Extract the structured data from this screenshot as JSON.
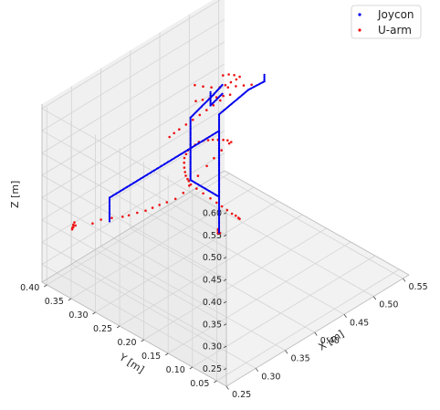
{
  "chart_data": {
    "type": "scatter",
    "projection": "3d",
    "grid": true,
    "legend_placement": "top-right",
    "xlabel": "X [m]",
    "ylabel": "Y [m]",
    "zlabel": "Z [m]",
    "xlim": [
      0.25,
      0.56
    ],
    "ylim": [
      0.03,
      0.41
    ],
    "zlim": [
      0.21,
      0.61
    ],
    "xticks": [
      "0.25",
      "0.30",
      "0.35",
      "0.40",
      "0.45",
      "0.50",
      "0.55"
    ],
    "yticks": [
      "0.05",
      "0.10",
      "0.15",
      "0.20",
      "0.25",
      "0.30",
      "0.35",
      "0.40"
    ],
    "zticks": [
      "0.25",
      "0.30",
      "0.35",
      "0.40",
      "0.45",
      "0.50",
      "0.55",
      "0.60"
    ],
    "colors": {
      "Joycon": "#0000ee",
      "U-arm": "#ee1111"
    },
    "series": [
      {
        "name": "Joycon",
        "marker": "dot",
        "segments": [
          [
            [
              0.274,
              0.3,
              0.395
            ],
            [
              0.274,
              0.3,
              0.43
            ],
            [
              0.274,
              0.3,
              0.448
            ]
          ],
          [
            [
              0.274,
              0.3,
              0.448
            ],
            [
              0.46,
              0.3,
              0.448
            ]
          ],
          [
            [
              0.46,
              0.3,
              0.448
            ],
            [
              0.46,
              0.3,
              0.3
            ],
            [
              0.46,
              0.3,
              0.22
            ]
          ],
          [
            [
              0.46,
              0.3,
              0.3
            ],
            [
              0.46,
              0.3,
              0.415
            ],
            [
              0.46,
              0.3,
              0.485
            ]
          ],
          [
            [
              0.46,
              0.3,
              0.485
            ],
            [
              0.51,
              0.3,
              0.5
            ],
            [
              0.537,
              0.3,
              0.497
            ],
            [
              0.537,
              0.3,
              0.512
            ]
          ],
          [
            [
              0.46,
              0.3,
              0.3
            ],
            [
              0.461,
              0.36,
              0.3
            ],
            [
              0.461,
              0.36,
              0.38
            ],
            [
              0.461,
              0.36,
              0.44
            ]
          ],
          [
            [
              0.461,
              0.36,
              0.44
            ],
            [
              0.48,
              0.36,
              0.45
            ],
            [
              0.5,
              0.36,
              0.46
            ],
            [
              0.515,
              0.36,
              0.47
            ]
          ],
          [
            [
              0.495,
              0.36,
              0.47
            ],
            [
              0.495,
              0.36,
              0.44
            ],
            [
              0.515,
              0.36,
              0.45
            ]
          ]
        ]
      },
      {
        "name": "U-arm",
        "marker": "dot",
        "points": [
          [
            0.262,
            0.36,
            0.355
          ],
          [
            0.262,
            0.36,
            0.36
          ],
          [
            0.261,
            0.361,
            0.35
          ],
          [
            0.263,
            0.359,
            0.365
          ],
          [
            0.262,
            0.362,
            0.352
          ],
          [
            0.264,
            0.358,
            0.358
          ],
          [
            0.27,
            0.33,
            0.375
          ],
          [
            0.276,
            0.32,
            0.385
          ],
          [
            0.282,
            0.305,
            0.393
          ],
          [
            0.288,
            0.29,
            0.4
          ],
          [
            0.292,
            0.282,
            0.405
          ],
          [
            0.298,
            0.272,
            0.412
          ],
          [
            0.304,
            0.262,
            0.418
          ],
          [
            0.31,
            0.255,
            0.424
          ],
          [
            0.316,
            0.248,
            0.43
          ],
          [
            0.322,
            0.24,
            0.436
          ],
          [
            0.33,
            0.232,
            0.442
          ],
          [
            0.34,
            0.228,
            0.45
          ],
          [
            0.35,
            0.228,
            0.458
          ],
          [
            0.365,
            0.228,
            0.468
          ],
          [
            0.38,
            0.228,
            0.478
          ],
          [
            0.392,
            0.228,
            0.486
          ],
          [
            0.405,
            0.228,
            0.493
          ],
          [
            0.418,
            0.228,
            0.498
          ],
          [
            0.423,
            0.23,
            0.496
          ],
          [
            0.425,
            0.24,
            0.492
          ],
          [
            0.426,
            0.25,
            0.486
          ],
          [
            0.427,
            0.262,
            0.478
          ],
          [
            0.428,
            0.274,
            0.47
          ],
          [
            0.43,
            0.286,
            0.46
          ],
          [
            0.432,
            0.298,
            0.45
          ],
          [
            0.434,
            0.31,
            0.438
          ],
          [
            0.436,
            0.32,
            0.424
          ],
          [
            0.438,
            0.33,
            0.41
          ],
          [
            0.44,
            0.34,
            0.396
          ],
          [
            0.442,
            0.346,
            0.382
          ],
          [
            0.444,
            0.352,
            0.368
          ],
          [
            0.446,
            0.355,
            0.354
          ],
          [
            0.448,
            0.357,
            0.34
          ],
          [
            0.45,
            0.358,
            0.328
          ],
          [
            0.453,
            0.36,
            0.316
          ],
          [
            0.456,
            0.36,
            0.306
          ],
          [
            0.458,
            0.36,
            0.3
          ],
          [
            0.46,
            0.358,
            0.292
          ],
          [
            0.463,
            0.35,
            0.285
          ],
          [
            0.466,
            0.34,
            0.278
          ],
          [
            0.47,
            0.33,
            0.27
          ],
          [
            0.474,
            0.322,
            0.262
          ],
          [
            0.478,
            0.316,
            0.254
          ],
          [
            0.482,
            0.31,
            0.246
          ],
          [
            0.486,
            0.305,
            0.238
          ],
          [
            0.49,
            0.302,
            0.232
          ],
          [
            0.493,
            0.3,
            0.226
          ],
          [
            0.495,
            0.3,
            0.222
          ],
          [
            0.458,
            0.3,
            0.22
          ],
          [
            0.459,
            0.301,
            0.224
          ],
          [
            0.461,
            0.299,
            0.218
          ],
          [
            0.46,
            0.302,
            0.226
          ],
          [
            0.46,
            0.35,
            0.52
          ],
          [
            0.47,
            0.345,
            0.512
          ],
          [
            0.48,
            0.34,
            0.505
          ],
          [
            0.49,
            0.335,
            0.5
          ],
          [
            0.5,
            0.33,
            0.495
          ],
          [
            0.51,
            0.326,
            0.492
          ],
          [
            0.52,
            0.322,
            0.488
          ],
          [
            0.53,
            0.318,
            0.484
          ],
          [
            0.47,
            0.36,
            0.47
          ],
          [
            0.48,
            0.358,
            0.466
          ],
          [
            0.49,
            0.356,
            0.462
          ],
          [
            0.5,
            0.354,
            0.458
          ],
          [
            0.51,
            0.352,
            0.454
          ],
          [
            0.52,
            0.35,
            0.45
          ],
          [
            0.505,
            0.352,
            0.448
          ],
          [
            0.495,
            0.354,
            0.444
          ],
          [
            0.485,
            0.356,
            0.44
          ],
          [
            0.475,
            0.358,
            0.436
          ],
          [
            0.465,
            0.36,
            0.432
          ],
          [
            0.455,
            0.362,
            0.428
          ],
          [
            0.445,
            0.364,
            0.424
          ],
          [
            0.438,
            0.366,
            0.42
          ],
          [
            0.432,
            0.368,
            0.415
          ],
          [
            0.512,
            0.35,
            0.478
          ],
          [
            0.518,
            0.346,
            0.482
          ],
          [
            0.524,
            0.342,
            0.486
          ],
          [
            0.528,
            0.34,
            0.49
          ],
          [
            0.522,
            0.344,
            0.496
          ],
          [
            0.516,
            0.348,
            0.5
          ],
          [
            0.508,
            0.35,
            0.503
          ]
        ]
      }
    ]
  }
}
